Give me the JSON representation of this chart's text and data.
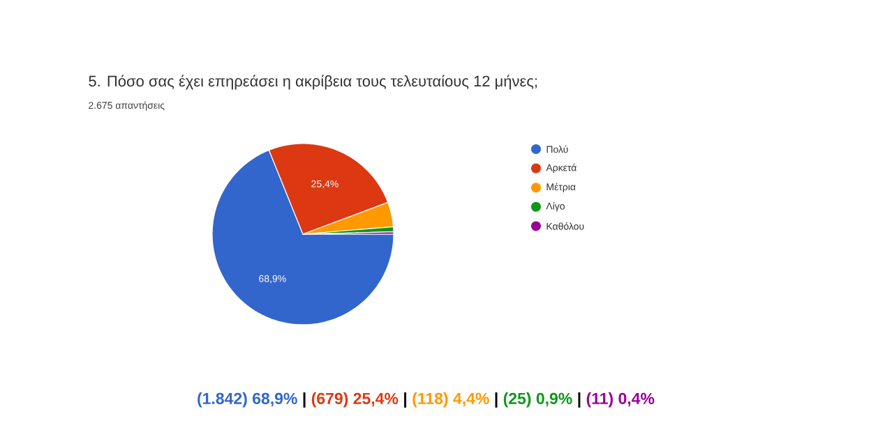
{
  "chart_data": {
    "type": "pie",
    "title": "5. Πόσο σας έχει επηρεάσει η ακρίβεια τους τελευταίους 12 μήνες;",
    "subtitle": "2.675 απαντήσεις",
    "categories": [
      "Πολύ",
      "Αρκετά",
      "Μέτρια",
      "Λίγο",
      "Καθόλου"
    ],
    "values": [
      68.9,
      25.4,
      4.4,
      0.9,
      0.4
    ],
    "colors": [
      "#3366cc",
      "#dc3912",
      "#ff9900",
      "#109618",
      "#990099"
    ],
    "value_labels": [
      "68,9%",
      "25,4%",
      null,
      null,
      null
    ],
    "legend": "right",
    "annotations": [
      "(1.842) 68,9%",
      "|",
      "(679) 25,4%",
      "|",
      "(118) 4,4%",
      "|",
      "(25) 0,9%",
      "|",
      "(11) 0,4%"
    ]
  }
}
